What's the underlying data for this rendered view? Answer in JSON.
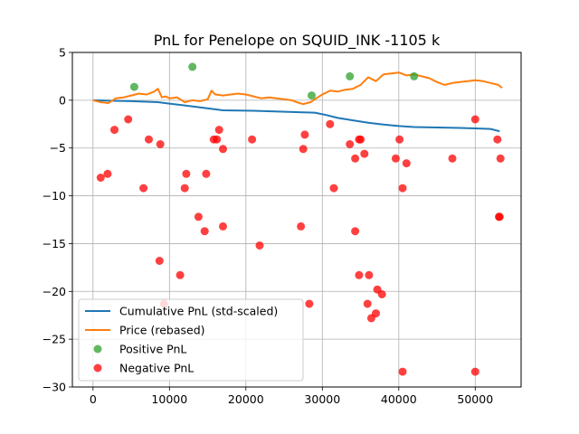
{
  "chart_data": {
    "type": "scatter",
    "title": "PnL for Penelope on SQUID_INK -1105 k",
    "xlabel": "",
    "ylabel": "",
    "xlim": [
      -2700,
      56000
    ],
    "ylim": [
      -30,
      5
    ],
    "xticks": [
      0,
      10000,
      20000,
      30000,
      40000,
      50000
    ],
    "xtick_labels": [
      "0",
      "10000",
      "20000",
      "30000",
      "40000",
      "50000"
    ],
    "yticks": [
      5,
      0,
      -5,
      -10,
      -15,
      -20,
      -25,
      -30
    ],
    "ytick_labels": [
      "5",
      "0",
      "−5",
      "−10",
      "−15",
      "−20",
      "−25",
      "−30"
    ],
    "grid": true,
    "legend_position": "lower-left",
    "colors": {
      "cumulative": "#1f77b4",
      "price": "#ff7f0e",
      "positive": "#2ca02c",
      "negative": "#ff0000"
    },
    "series": [
      {
        "name": "Cumulative PnL (std-scaled)",
        "kind": "line",
        "x": [
          0,
          5000,
          8500,
          10000,
          11500,
          14000,
          17000,
          21000,
          27000,
          29000,
          30500,
          32000,
          34000,
          36000,
          38000,
          40000,
          42000,
          45000,
          48000,
          50000,
          52000,
          53200
        ],
        "y": [
          0,
          -0.1,
          -0.2,
          -0.35,
          -0.5,
          -0.75,
          -1.05,
          -1.1,
          -1.25,
          -1.3,
          -1.55,
          -1.85,
          -2.1,
          -2.35,
          -2.55,
          -2.7,
          -2.8,
          -2.85,
          -2.9,
          -2.95,
          -3.0,
          -3.25
        ]
      },
      {
        "name": "Price (rebased)",
        "kind": "line",
        "x": [
          0,
          1000,
          2000,
          3000,
          4000,
          5000,
          6000,
          7000,
          8000,
          8500,
          9000,
          9500,
          10000,
          11000,
          12000,
          13000,
          14000,
          15000,
          15500,
          16000,
          17000,
          18000,
          19000,
          20000,
          21000,
          22000,
          23000,
          24000,
          25000,
          26000,
          27000,
          27500,
          28000,
          28500,
          29000,
          30000,
          31000,
          32000,
          33000,
          34000,
          35000,
          36000,
          37000,
          38000,
          39000,
          40000,
          41000,
          42000,
          43000,
          44000,
          45000,
          46000,
          47000,
          48000,
          49000,
          50000,
          51000,
          52000,
          53000,
          53500
        ],
        "y": [
          0,
          -0.2,
          -0.3,
          0.2,
          0.3,
          0.5,
          0.7,
          0.6,
          0.9,
          1.2,
          0.3,
          0.4,
          0.2,
          0.3,
          -0.2,
          0.0,
          -0.1,
          0.1,
          1.0,
          0.6,
          0.5,
          0.6,
          0.7,
          0.6,
          0.4,
          0.2,
          0.3,
          0.2,
          0.1,
          0.0,
          -0.3,
          -0.4,
          -0.3,
          -0.2,
          0.1,
          0.6,
          1.0,
          0.9,
          1.1,
          1.2,
          1.6,
          2.4,
          2.0,
          2.7,
          2.8,
          2.9,
          2.6,
          2.7,
          2.5,
          2.3,
          1.9,
          1.6,
          1.8,
          1.9,
          2.0,
          2.1,
          2.0,
          1.8,
          1.6,
          1.3
        ]
      },
      {
        "name": "Positive PnL",
        "kind": "scatter",
        "points": [
          [
            5400,
            1.4
          ],
          [
            13000,
            3.5
          ],
          [
            28600,
            0.5
          ],
          [
            33600,
            2.5
          ],
          [
            42000,
            2.5
          ]
        ]
      },
      {
        "name": "Negative PnL",
        "kind": "scatter",
        "points": [
          [
            1000,
            -8.1
          ],
          [
            1900,
            -7.7
          ],
          [
            2800,
            -3.1
          ],
          [
            4600,
            -2.0
          ],
          [
            6600,
            -9.2
          ],
          [
            7300,
            -4.1
          ],
          [
            8800,
            -4.6
          ],
          [
            8700,
            -16.8
          ],
          [
            9300,
            -21.3
          ],
          [
            11400,
            -18.3
          ],
          [
            12000,
            -9.2
          ],
          [
            12200,
            -7.7
          ],
          [
            13800,
            -12.2
          ],
          [
            14600,
            -13.7
          ],
          [
            14800,
            -7.7
          ],
          [
            15800,
            -4.1
          ],
          [
            16200,
            -4.1
          ],
          [
            16500,
            -3.1
          ],
          [
            17000,
            -5.1
          ],
          [
            17000,
            -13.2
          ],
          [
            20800,
            -4.1
          ],
          [
            21800,
            -15.2
          ],
          [
            27200,
            -13.2
          ],
          [
            27500,
            -5.1
          ],
          [
            27700,
            -3.6
          ],
          [
            28300,
            -21.3
          ],
          [
            31000,
            -2.5
          ],
          [
            31500,
            -9.2
          ],
          [
            33600,
            -4.6
          ],
          [
            34300,
            -6.1
          ],
          [
            34300,
            -13.7
          ],
          [
            34800,
            -18.3
          ],
          [
            34800,
            -4.1
          ],
          [
            35000,
            -4.1
          ],
          [
            35500,
            -5.6
          ],
          [
            35900,
            -21.3
          ],
          [
            36100,
            -18.3
          ],
          [
            36400,
            -22.8
          ],
          [
            37000,
            -22.3
          ],
          [
            37200,
            -19.8
          ],
          [
            37800,
            -20.3
          ],
          [
            39600,
            -6.1
          ],
          [
            40100,
            -4.1
          ],
          [
            40500,
            -9.2
          ],
          [
            40500,
            -28.4
          ],
          [
            41000,
            -6.6
          ],
          [
            47000,
            -6.1
          ],
          [
            50000,
            -2.0
          ],
          [
            50000,
            -28.4
          ],
          [
            52900,
            -4.1
          ],
          [
            53100,
            -12.2
          ],
          [
            53200,
            -12.2
          ],
          [
            53300,
            -6.1
          ]
        ]
      }
    ]
  }
}
